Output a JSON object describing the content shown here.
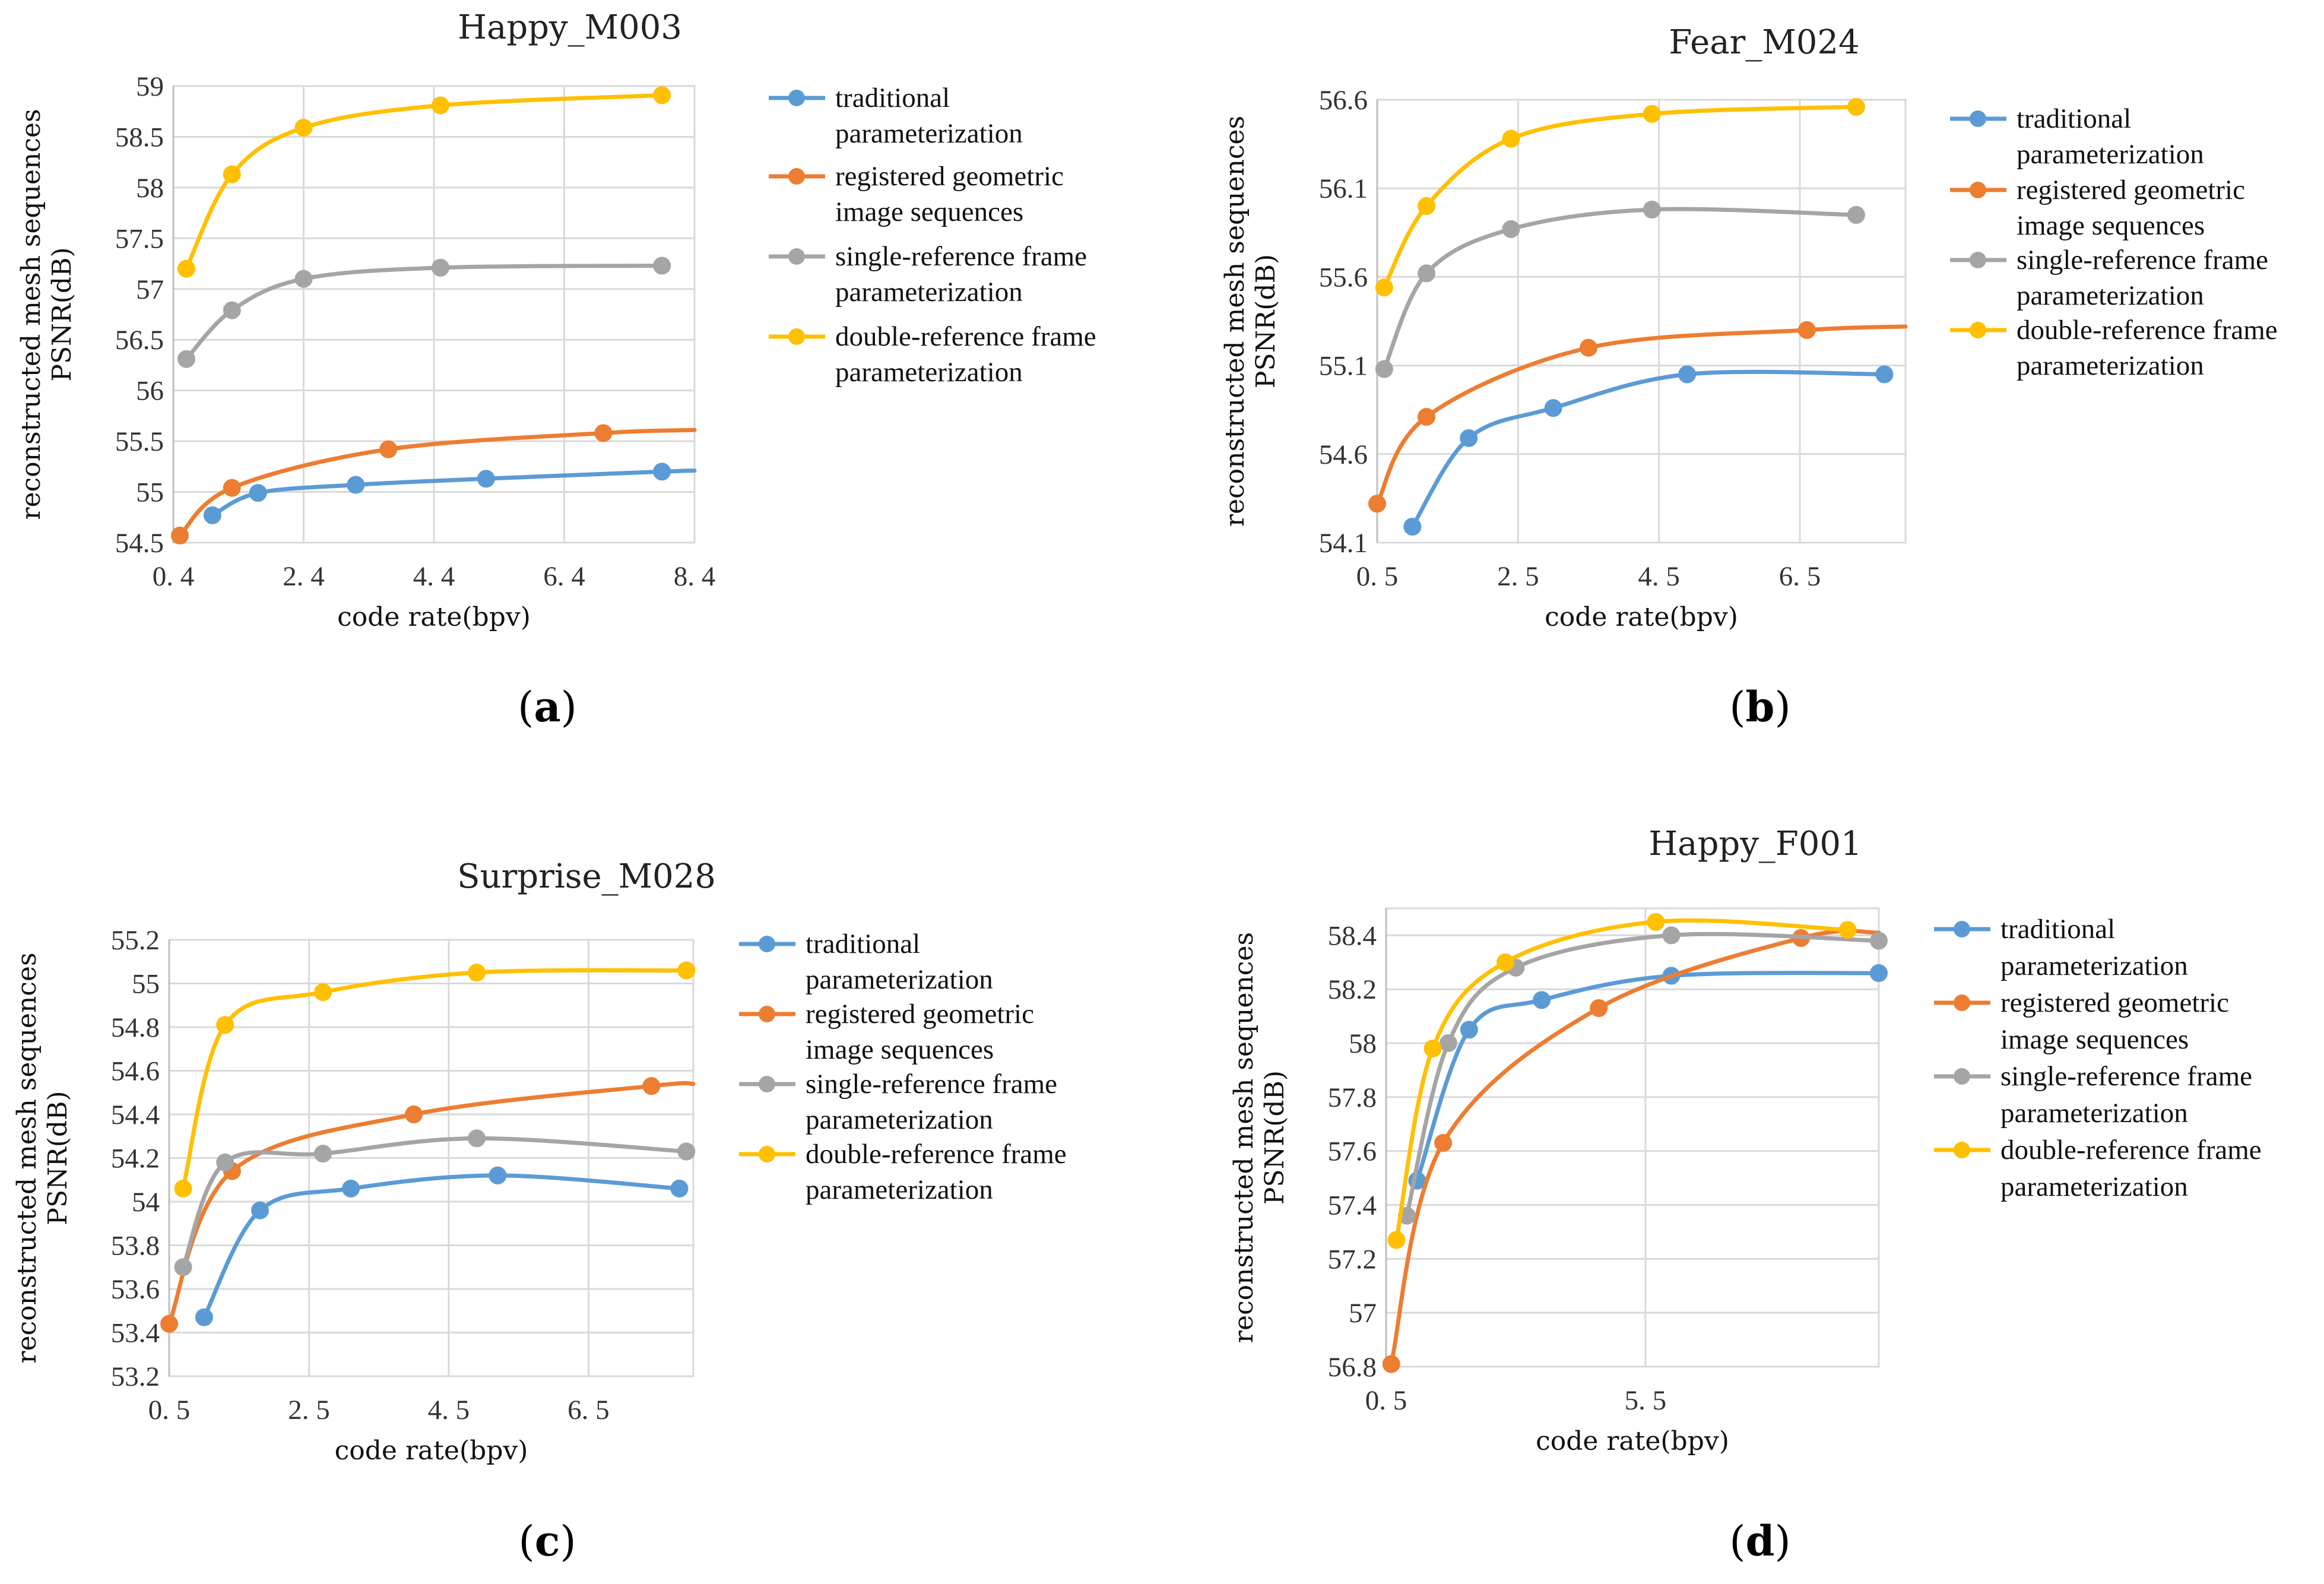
{
  "figure_labels": [
    "(a)",
    "(b)",
    "(c)",
    "(d)"
  ],
  "colors": {
    "traditional": "#5B9BD5",
    "registered": "#ED7D31",
    "single": "#A5A5A5",
    "double": "#FFC000"
  },
  "chart_data": [
    {
      "type": "line",
      "title": "Happy_M003",
      "xlabel": "code rate(bpv)",
      "ylabel": [
        "reconstructed mesh sequences",
        "PSNR(dB)"
      ],
      "xlim": [
        0.4,
        8.4
      ],
      "ylim": [
        54.5,
        59
      ],
      "xticks": [
        0.4,
        2.4,
        4.4,
        6.4,
        8.4
      ],
      "xtick_labels": [
        "0. 4",
        "2. 4",
        "4. 4",
        "6. 4",
        "8. 4"
      ],
      "yticks": [
        54.5,
        55,
        55.5,
        56,
        56.5,
        57,
        57.5,
        58,
        58.5,
        59
      ],
      "ytick_labels": [
        "54.5",
        "55",
        "55.5",
        "56",
        "56.5",
        "57",
        "57.5",
        "58",
        "58.5",
        "59"
      ],
      "series": [
        {
          "key": "traditional",
          "name": [
            "traditional",
            "parameterization"
          ],
          "x": [
            1.0,
            1.7,
            3.2,
            5.2,
            7.9
          ],
          "y": [
            54.77,
            54.99,
            55.07,
            55.13,
            55.2
          ],
          "tail": [
            8.4,
            55.21
          ]
        },
        {
          "key": "registered",
          "name": [
            "registered geometric",
            "image sequences"
          ],
          "x": [
            0.5,
            1.3,
            3.7,
            7.0
          ],
          "y": [
            54.57,
            55.04,
            55.42,
            55.58
          ],
          "tail": [
            8.4,
            55.61
          ]
        },
        {
          "key": "single",
          "name": [
            "single-reference frame",
            "parameterization"
          ],
          "x": [
            0.6,
            1.3,
            2.4,
            4.5,
            7.9
          ],
          "y": [
            56.31,
            56.79,
            57.1,
            57.21,
            57.23
          ],
          "tail": null
        },
        {
          "key": "double",
          "name": [
            "double-reference frame",
            "parameterization"
          ],
          "x": [
            0.6,
            1.3,
            2.4,
            4.5,
            7.9
          ],
          "y": [
            57.2,
            58.13,
            58.59,
            58.81,
            58.91
          ],
          "tail": null
        }
      ]
    },
    {
      "type": "line",
      "title": "Fear_M024",
      "xlabel": "code rate(bpv)",
      "ylabel": [
        "reconstructed mesh sequences",
        "PSNR(dB)"
      ],
      "xlim": [
        0.5,
        8.0
      ],
      "ylim": [
        54.1,
        56.6
      ],
      "xticks": [
        0.5,
        2.5,
        4.5,
        6.5
      ],
      "xtick_labels": [
        "0. 5",
        "2. 5",
        "4. 5",
        "6. 5"
      ],
      "yticks": [
        54.1,
        54.6,
        55.1,
        55.6,
        56.1,
        56.6
      ],
      "ytick_labels": [
        "54.1",
        "54.6",
        "55.1",
        "55.6",
        "56.1",
        "56.6"
      ],
      "series": [
        {
          "key": "traditional",
          "name": [
            "traditional",
            "parameterization"
          ],
          "x": [
            1.0,
            1.8,
            3.0,
            4.9,
            7.7
          ],
          "y": [
            54.19,
            54.69,
            54.86,
            55.05,
            55.05
          ],
          "tail": null
        },
        {
          "key": "registered",
          "name": [
            "registered geometric",
            "image sequences"
          ],
          "x": [
            0.5,
            1.2,
            3.5,
            6.6
          ],
          "y": [
            54.32,
            54.81,
            55.2,
            55.3
          ],
          "tail": [
            8.0,
            55.32
          ]
        },
        {
          "key": "single",
          "name": [
            "single-reference frame",
            "parameterization"
          ],
          "x": [
            0.6,
            1.2,
            2.4,
            4.4,
            7.3
          ],
          "y": [
            55.08,
            55.62,
            55.87,
            55.98,
            55.95
          ],
          "tail": null
        },
        {
          "key": "double",
          "name": [
            "double-reference frame",
            "parameterization"
          ],
          "x": [
            0.6,
            1.2,
            2.4,
            4.4,
            7.3
          ],
          "y": [
            55.54,
            56.0,
            56.38,
            56.52,
            56.56
          ],
          "tail": null
        }
      ]
    },
    {
      "type": "line",
      "title": "Surprise_M028",
      "xlabel": "code rate(bpv)",
      "ylabel": [
        "reconstructed mesh sequences",
        "PSNR(dB)"
      ],
      "xlim": [
        0.5,
        8.0
      ],
      "ylim": [
        53.2,
        55.2
      ],
      "xticks": [
        0.5,
        2.5,
        4.5,
        6.5
      ],
      "xtick_labels": [
        "0. 5",
        "2. 5",
        "4. 5",
        "6. 5"
      ],
      "yticks": [
        53.2,
        53.4,
        53.6,
        53.8,
        54,
        54.2,
        54.4,
        54.6,
        54.8,
        55,
        55.2
      ],
      "ytick_labels": [
        "53.2",
        "53.4",
        "53.6",
        "53.8",
        "54",
        "54.2",
        "54.4",
        "54.6",
        "54.8",
        "55",
        "55.2"
      ],
      "series": [
        {
          "key": "traditional",
          "name": [
            "traditional",
            "parameterization"
          ],
          "x": [
            1.0,
            1.8,
            3.1,
            5.2,
            7.8
          ],
          "y": [
            53.47,
            53.96,
            54.06,
            54.12,
            54.06
          ],
          "tail": null
        },
        {
          "key": "registered",
          "name": [
            "registered geometric",
            "image sequences"
          ],
          "x": [
            0.5,
            1.4,
            4.0,
            7.4
          ],
          "y": [
            53.44,
            54.14,
            54.4,
            54.53
          ],
          "tail": [
            8.0,
            54.54
          ]
        },
        {
          "key": "single",
          "name": [
            "single-reference frame",
            "parameterization"
          ],
          "x": [
            0.7,
            1.3,
            2.7,
            4.9,
            7.9
          ],
          "y": [
            53.7,
            54.18,
            54.22,
            54.29,
            54.23
          ],
          "tail": null
        },
        {
          "key": "double",
          "name": [
            "double-reference frame",
            "parameterization"
          ],
          "x": [
            0.7,
            1.3,
            2.7,
            4.9,
            7.9
          ],
          "y": [
            54.06,
            54.81,
            54.96,
            55.05,
            55.06
          ],
          "tail": null
        }
      ]
    },
    {
      "type": "line",
      "title": "Happy_F001",
      "xlabel": "code rate(bpv)",
      "ylabel": [
        "reconstructed mesh sequences",
        "PSNR(dB)"
      ],
      "xlim": [
        0.5,
        10.0
      ],
      "ylim": [
        56.8,
        58.5
      ],
      "xticks": [
        0.5,
        5.5
      ],
      "xtick_labels": [
        "0. 5",
        "5. 5"
      ],
      "yticks": [
        56.8,
        57,
        57.2,
        57.4,
        57.6,
        57.8,
        58,
        58.2,
        58.4
      ],
      "ytick_labels": [
        "56.8",
        "57",
        "57.2",
        "57.4",
        "57.6",
        "57.8",
        "58",
        "58.2",
        "58.4"
      ],
      "series": [
        {
          "key": "traditional",
          "name": [
            "traditional",
            "parameterization"
          ],
          "x": [
            1.1,
            2.1,
            3.5,
            6.0,
            10.0
          ],
          "y": [
            57.49,
            58.05,
            58.16,
            58.25,
            58.26
          ],
          "tail": null
        },
        {
          "key": "registered",
          "name": [
            "registered geometric",
            "image sequences"
          ],
          "x": [
            0.6,
            1.6,
            4.6,
            8.5
          ],
          "y": [
            56.81,
            57.63,
            58.13,
            58.39
          ],
          "tail": [
            10.0,
            58.41
          ]
        },
        {
          "key": "single",
          "name": [
            "single-reference frame",
            "parameterization"
          ],
          "x": [
            0.9,
            1.7,
            3.0,
            6.0,
            10.0
          ],
          "y": [
            57.36,
            58.0,
            58.28,
            58.4,
            58.38
          ],
          "tail": null
        },
        {
          "key": "double",
          "name": [
            "double-reference frame",
            "parameterization"
          ],
          "x": [
            0.7,
            1.4,
            2.8,
            5.7,
            9.4
          ],
          "y": [
            57.27,
            57.98,
            58.3,
            58.45,
            58.42
          ],
          "tail": null
        }
      ]
    }
  ]
}
